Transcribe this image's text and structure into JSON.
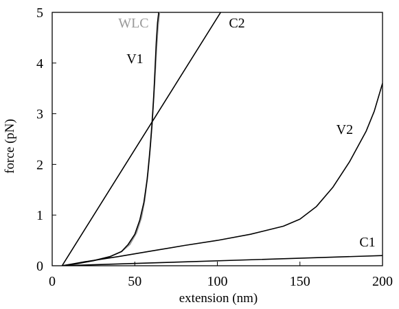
{
  "chart_data": {
    "type": "line",
    "xlabel": "extension (nm)",
    "ylabel": "force (pN)",
    "xlim": [
      0,
      200
    ],
    "ylim": [
      0,
      5
    ],
    "xticks": [
      0,
      50,
      100,
      150,
      200
    ],
    "yticks": [
      0,
      1,
      2,
      3,
      4,
      5
    ],
    "grid": false,
    "legend": "none",
    "series": [
      {
        "name": "WLC",
        "color": "#999999",
        "x": [
          6,
          15,
          25,
          35,
          42,
          47,
          51,
          54,
          56,
          58,
          59.5,
          61,
          62,
          63,
          64,
          65
        ],
        "y": [
          0,
          0.04,
          0.1,
          0.18,
          0.28,
          0.42,
          0.65,
          0.95,
          1.3,
          1.85,
          2.4,
          3.1,
          3.6,
          4.2,
          4.7,
          5.0
        ]
      },
      {
        "name": "V1",
        "color": "#000000",
        "x": [
          6,
          15,
          25,
          35,
          42,
          46,
          50,
          53,
          55.5,
          57.5,
          59,
          60.5,
          61.5,
          62.3,
          63,
          63.8,
          64.5
        ],
        "y": [
          0,
          0.04,
          0.1,
          0.18,
          0.28,
          0.42,
          0.62,
          0.9,
          1.25,
          1.7,
          2.2,
          2.8,
          3.35,
          3.9,
          4.4,
          4.8,
          5.0
        ]
      },
      {
        "name": "C2",
        "color": "#000000",
        "x": [
          6,
          102
        ],
        "y": [
          0,
          5.0
        ]
      },
      {
        "name": "V2",
        "color": "#000000",
        "x": [
          6,
          20,
          40,
          60,
          80,
          100,
          120,
          140,
          150,
          160,
          170,
          180,
          190,
          195,
          200
        ],
        "y": [
          0,
          0.08,
          0.18,
          0.29,
          0.4,
          0.5,
          0.62,
          0.78,
          0.92,
          1.17,
          1.55,
          2.05,
          2.65,
          3.05,
          3.6
        ]
      },
      {
        "name": "C1",
        "color": "#000000",
        "x": [
          6,
          200
        ],
        "y": [
          0,
          0.2
        ]
      }
    ],
    "annotations": [
      {
        "text": "WLC",
        "color": "#999999",
        "x": 40,
        "y": 4.7
      },
      {
        "text": "V1",
        "color": "#000000",
        "x": 45,
        "y": 4.0
      },
      {
        "text": "C2",
        "color": "#000000",
        "x": 107,
        "y": 4.7
      },
      {
        "text": "V2",
        "color": "#000000",
        "x": 172,
        "y": 2.6
      },
      {
        "text": "C1",
        "color": "#000000",
        "x": 186,
        "y": 0.38
      }
    ]
  }
}
